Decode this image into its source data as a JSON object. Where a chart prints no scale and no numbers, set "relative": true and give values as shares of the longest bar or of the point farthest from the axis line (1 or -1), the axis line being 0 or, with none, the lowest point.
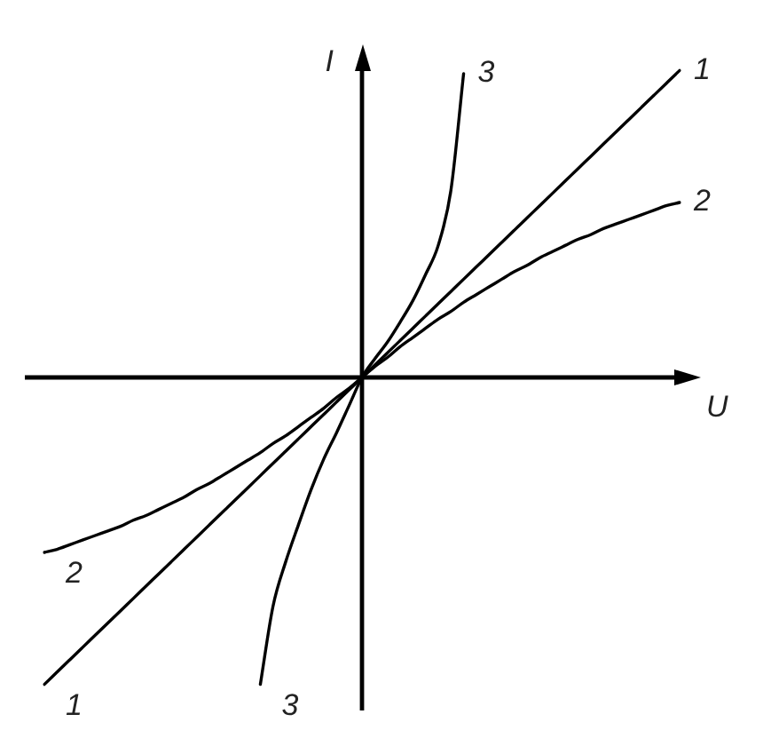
{
  "chart_data": {
    "type": "line",
    "xlabel": "U",
    "ylabel": "I",
    "relative": true,
    "legend": false,
    "marker": "none",
    "line_style": "solid",
    "categories": [
      null,
      null,
      null,
      null,
      null,
      null,
      null,
      null,
      null,
      null,
      null,
      null,
      null,
      null,
      null,
      null,
      null,
      null,
      null,
      null,
      null,
      null,
      null,
      null,
      null,
      null,
      null,
      null,
      null,
      null,
      null,
      null,
      null,
      null,
      null,
      null,
      null,
      null,
      null,
      null,
      null,
      null,
      null,
      null,
      null,
      null,
      null,
      null,
      null,
      null,
      null
    ],
    "series": [
      {
        "name": "1",
        "color": "#000000",
        "values": [
          -1,
          -0.96,
          -0.92,
          -0.88,
          -0.84,
          -0.8,
          -0.76,
          -0.72,
          -0.68,
          -0.64,
          -0.6,
          -0.56,
          -0.52,
          -0.48,
          -0.44,
          -0.4,
          -0.36,
          -0.32,
          -0.28,
          -0.24,
          -0.2,
          -0.16,
          -0.12,
          -0.08,
          -0.04,
          0,
          0.04,
          0.08,
          0.12,
          0.16,
          0.2,
          0.24,
          0.28,
          0.32,
          0.36,
          0.4,
          0.44,
          0.48,
          0.52,
          0.56,
          0.6,
          0.64,
          0.68,
          0.72,
          0.76,
          0.8,
          0.84,
          0.88,
          0.92,
          0.96,
          1
        ]
      },
      {
        "name": "2",
        "color": "#000000",
        "values": [
          -0.57,
          -0.56,
          -0.545,
          -0.53,
          -0.515,
          -0.5,
          -0.485,
          -0.465,
          -0.45,
          -0.43,
          -0.41,
          -0.39,
          -0.365,
          -0.345,
          -0.32,
          -0.295,
          -0.27,
          -0.245,
          -0.215,
          -0.19,
          -0.16,
          -0.13,
          -0.1,
          -0.065,
          -0.035,
          0,
          0.035,
          0.065,
          0.1,
          0.13,
          0.16,
          0.19,
          0.215,
          0.245,
          0.27,
          0.295,
          0.32,
          0.345,
          0.365,
          0.39,
          0.41,
          0.43,
          0.45,
          0.465,
          0.485,
          0.5,
          0.515,
          0.53,
          0.545,
          0.56,
          0.57
        ]
      },
      {
        "name": "3",
        "color": "#000000",
        "values": [
          null,
          null,
          null,
          null,
          null,
          null,
          null,
          null,
          null,
          null,
          null,
          null,
          null,
          null,
          null,
          null,
          null,
          -1,
          -0.745,
          -0.6,
          -0.48,
          -0.365,
          -0.265,
          -0.18,
          -0.09,
          0,
          0.06,
          0.115,
          0.18,
          0.25,
          0.335,
          0.43,
          0.61,
          0.99,
          null,
          null,
          null,
          null,
          null,
          null,
          null,
          null,
          null,
          null,
          null,
          null,
          null,
          null,
          null,
          null,
          null
        ]
      }
    ]
  }
}
